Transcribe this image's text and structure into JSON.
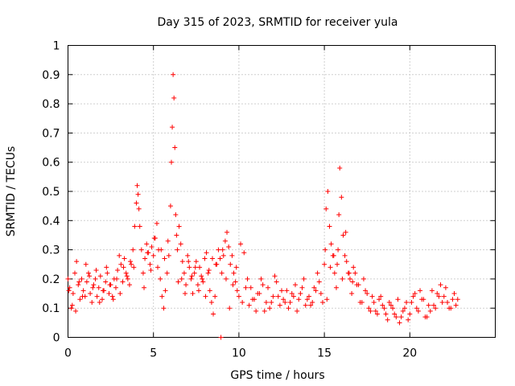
{
  "chart_data": {
    "type": "scatter",
    "title": "Day 315 of 2023, SRMTID for receiver yula",
    "xlabel": "GPS time / hours",
    "ylabel": "SRMTID / TECUs",
    "xlim": [
      0,
      25
    ],
    "ylim": [
      0,
      1
    ],
    "xticks": [
      0,
      5,
      10,
      15,
      20
    ],
    "yticks": [
      0,
      0.1,
      0.2,
      0.3,
      0.4,
      0.5,
      0.6,
      0.7,
      0.8,
      0.9,
      1
    ],
    "xtick_labels": [
      "0",
      "5",
      "10",
      "15",
      "20"
    ],
    "ytick_labels": [
      "0",
      "0.1",
      "0.2",
      "0.3",
      "0.4",
      "0.5",
      "0.6",
      "0.7",
      "0.8",
      "0.9",
      "1"
    ],
    "grid": true,
    "marker": "+",
    "color": "#ff0000",
    "series": [
      {
        "name": "SRMTID",
        "x": [
          0.0,
          0.1,
          0.2,
          0.3,
          0.4,
          0.5,
          0.6,
          0.7,
          0.8,
          0.9,
          1.0,
          1.1,
          1.2,
          1.3,
          1.4,
          1.5,
          1.6,
          1.7,
          1.8,
          1.9,
          2.0,
          2.1,
          2.2,
          2.3,
          2.4,
          2.5,
          2.6,
          2.7,
          2.8,
          2.9,
          3.0,
          3.1,
          3.2,
          3.3,
          3.4,
          3.5,
          3.6,
          3.7,
          3.8,
          3.9,
          4.0,
          4.05,
          4.1,
          4.15,
          4.2,
          4.3,
          4.4,
          4.5,
          4.6,
          4.7,
          4.8,
          4.9,
          5.0,
          5.1,
          5.2,
          5.3,
          5.4,
          5.5,
          5.6,
          5.7,
          5.8,
          5.9,
          6.0,
          6.05,
          6.1,
          6.15,
          6.2,
          6.25,
          6.3,
          6.35,
          6.4,
          6.5,
          6.6,
          6.7,
          6.8,
          6.9,
          7.0,
          7.1,
          7.2,
          7.3,
          7.4,
          7.5,
          7.6,
          7.7,
          7.8,
          7.9,
          8.0,
          8.1,
          8.2,
          8.3,
          8.4,
          8.5,
          8.6,
          8.7,
          8.8,
          8.9,
          8.95,
          9.0,
          9.1,
          9.2,
          9.3,
          9.4,
          9.5,
          9.6,
          9.7,
          9.8,
          9.9,
          10.0,
          10.2,
          10.4,
          10.6,
          10.8,
          11.0,
          11.2,
          11.4,
          11.6,
          11.8,
          12.0,
          12.2,
          12.4,
          12.6,
          12.8,
          13.0,
          13.2,
          13.4,
          13.6,
          13.8,
          14.0,
          14.2,
          14.4,
          14.6,
          14.8,
          14.9,
          15.0,
          15.05,
          15.1,
          15.2,
          15.3,
          15.4,
          15.5,
          15.6,
          15.7,
          15.75,
          15.8,
          15.85,
          15.9,
          16.0,
          16.1,
          16.2,
          16.3,
          16.4,
          16.5,
          16.6,
          16.7,
          16.8,
          17.0,
          17.2,
          17.4,
          17.6,
          17.8,
          18.0,
          18.2,
          18.4,
          18.6,
          18.8,
          19.0,
          19.2,
          19.4,
          19.6,
          19.8,
          20.0,
          20.2,
          20.4,
          20.6,
          20.8,
          21.0,
          21.2,
          21.4,
          21.6,
          21.8,
          22.0,
          22.2,
          22.4,
          22.6,
          22.8,
          0.05,
          0.25,
          0.45,
          0.65,
          0.85,
          1.05,
          1.25,
          1.45,
          1.65,
          1.85,
          2.05,
          2.25,
          2.45,
          2.65,
          2.85,
          3.05,
          3.25,
          3.45,
          3.65,
          3.85,
          4.45,
          4.65,
          4.85,
          5.05,
          5.25,
          5.45,
          5.65,
          5.85,
          6.45,
          6.65,
          6.85,
          7.05,
          7.25,
          7.45,
          7.65,
          7.85,
          8.05,
          8.25,
          8.45,
          8.65,
          9.05,
          9.25,
          9.45,
          9.65,
          9.85,
          10.1,
          10.3,
          10.5,
          10.7,
          10.9,
          11.1,
          11.3,
          11.5,
          11.7,
          11.9,
          12.1,
          12.3,
          12.5,
          12.7,
          12.9,
          13.1,
          13.3,
          13.5,
          13.7,
          13.9,
          14.1,
          14.3,
          14.5,
          14.7,
          15.15,
          15.35,
          15.55,
          16.05,
          16.25,
          16.45,
          16.65,
          16.9,
          17.1,
          17.3,
          17.5,
          17.7,
          17.9,
          18.1,
          18.3,
          18.5,
          18.7,
          18.9,
          19.1,
          19.3,
          19.5,
          19.7,
          19.9,
          20.1,
          20.3,
          20.5,
          20.7,
          20.9,
          21.1,
          21.3,
          21.5,
          21.7,
          21.9,
          22.1,
          22.3,
          22.5,
          22.7
        ],
        "y": [
          0.2,
          0.17,
          0.1,
          0.15,
          0.22,
          0.26,
          0.18,
          0.13,
          0.2,
          0.16,
          0.14,
          0.19,
          0.22,
          0.15,
          0.12,
          0.18,
          0.2,
          0.14,
          0.17,
          0.21,
          0.13,
          0.16,
          0.19,
          0.22,
          0.15,
          0.18,
          0.14,
          0.2,
          0.17,
          0.23,
          0.28,
          0.25,
          0.19,
          0.27,
          0.22,
          0.2,
          0.18,
          0.25,
          0.3,
          0.38,
          0.46,
          0.52,
          0.49,
          0.44,
          0.38,
          0.3,
          0.22,
          0.27,
          0.32,
          0.29,
          0.25,
          0.31,
          0.28,
          0.34,
          0.39,
          0.3,
          0.2,
          0.14,
          0.1,
          0.16,
          0.22,
          0.28,
          0.45,
          0.6,
          0.72,
          0.9,
          0.82,
          0.65,
          0.42,
          0.35,
          0.3,
          0.38,
          0.32,
          0.26,
          0.22,
          0.18,
          0.28,
          0.24,
          0.2,
          0.15,
          0.22,
          0.26,
          0.18,
          0.24,
          0.21,
          0.19,
          0.27,
          0.29,
          0.22,
          0.16,
          0.12,
          0.08,
          0.14,
          0.25,
          0.3,
          0.27,
          0.0,
          0.22,
          0.28,
          0.33,
          0.36,
          0.31,
          0.25,
          0.28,
          0.22,
          0.19,
          0.16,
          0.14,
          0.12,
          0.17,
          0.11,
          0.13,
          0.09,
          0.15,
          0.18,
          0.12,
          0.1,
          0.14,
          0.19,
          0.11,
          0.13,
          0.16,
          0.12,
          0.14,
          0.09,
          0.15,
          0.2,
          0.13,
          0.11,
          0.17,
          0.22,
          0.15,
          0.12,
          0.25,
          0.3,
          0.44,
          0.5,
          0.38,
          0.32,
          0.28,
          0.22,
          0.17,
          0.25,
          0.3,
          0.42,
          0.58,
          0.48,
          0.35,
          0.28,
          0.26,
          0.22,
          0.2,
          0.15,
          0.24,
          0.22,
          0.18,
          0.12,
          0.16,
          0.1,
          0.14,
          0.09,
          0.13,
          0.11,
          0.08,
          0.12,
          0.1,
          0.07,
          0.05,
          0.09,
          0.12,
          0.08,
          0.14,
          0.1,
          0.16,
          0.13,
          0.07,
          0.09,
          0.11,
          0.15,
          0.18,
          0.14,
          0.12,
          0.1,
          0.15,
          0.13,
          0.16,
          0.11,
          0.09,
          0.19,
          0.14,
          0.25,
          0.21,
          0.17,
          0.23,
          0.12,
          0.16,
          0.24,
          0.18,
          0.13,
          0.2,
          0.15,
          0.24,
          0.21,
          0.26,
          0.24,
          0.17,
          0.29,
          0.23,
          0.34,
          0.24,
          0.3,
          0.27,
          0.33,
          0.19,
          0.2,
          0.15,
          0.26,
          0.21,
          0.24,
          0.16,
          0.2,
          0.14,
          0.23,
          0.27,
          0.25,
          0.3,
          0.2,
          0.1,
          0.18,
          0.24,
          0.32,
          0.29,
          0.2,
          0.17,
          0.13,
          0.15,
          0.2,
          0.09,
          0.17,
          0.12,
          0.21,
          0.14,
          0.16,
          0.12,
          0.1,
          0.15,
          0.18,
          0.13,
          0.17,
          0.11,
          0.14,
          0.12,
          0.16,
          0.19,
          0.13,
          0.24,
          0.28,
          0.2,
          0.36,
          0.22,
          0.19,
          0.18,
          0.12,
          0.2,
          0.15,
          0.09,
          0.12,
          0.08,
          0.14,
          0.1,
          0.06,
          0.11,
          0.08,
          0.13,
          0.07,
          0.1,
          0.06,
          0.12,
          0.15,
          0.09,
          0.13,
          0.07,
          0.11,
          0.16,
          0.1,
          0.14,
          0.12,
          0.17,
          0.1,
          0.13,
          0.11
        ]
      }
    ]
  }
}
